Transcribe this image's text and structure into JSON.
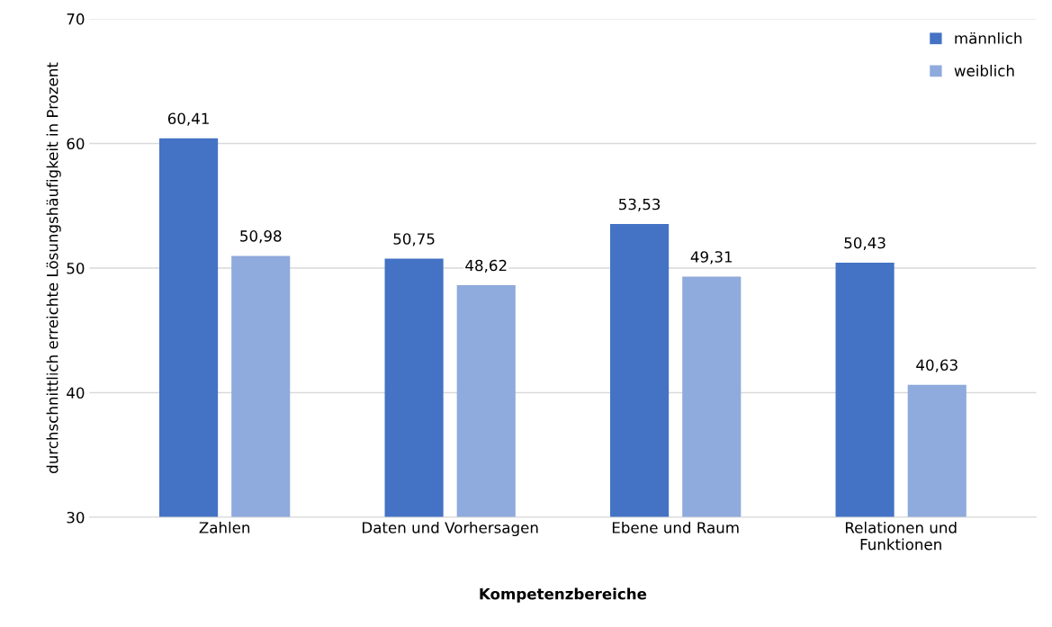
{
  "chart_data": {
    "type": "bar",
    "xlabel": "Kompetenzbereiche",
    "ylabel": "durchschnittlich erreichte Lösungshäufigkeit in Prozent",
    "categories": [
      "Zahlen",
      "Daten und Vorhersagen",
      "Ebene und Raum",
      "Relationen und\nFunktionen"
    ],
    "series": [
      {
        "name": "männlich",
        "color": "#4472c4",
        "values": [
          60.41,
          50.75,
          53.53,
          50.43
        ],
        "value_labels": [
          "60,41",
          "50,75",
          "53,53",
          "50,43"
        ]
      },
      {
        "name": "weiblich",
        "color": "#8faadc",
        "values": [
          50.98,
          48.62,
          49.31,
          40.63
        ],
        "value_labels": [
          "50,98",
          "48,62",
          "49,31",
          "40,63"
        ]
      }
    ],
    "ylim": [
      30,
      70
    ],
    "yticks": [
      30,
      40,
      50,
      60,
      70
    ],
    "grid": "y",
    "legend": "top right"
  }
}
